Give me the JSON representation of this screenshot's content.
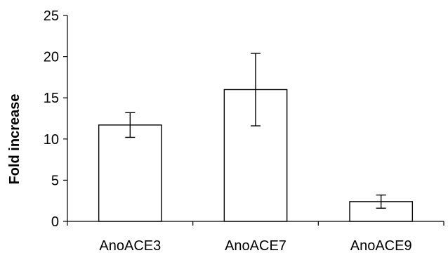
{
  "chart_data": {
    "type": "bar",
    "title": "",
    "xlabel": "",
    "ylabel": "Fold increase",
    "ylim": [
      0,
      25
    ],
    "yticks": [
      0,
      5,
      10,
      15,
      20,
      25
    ],
    "grid": false,
    "categories": [
      "AnoACE3",
      "AnoACE7",
      "AnoACE9"
    ],
    "series": [
      {
        "values": [
          11.7,
          16.0,
          2.4
        ],
        "error": [
          1.5,
          4.4,
          0.8
        ],
        "color": "#ffffff",
        "edge_color": "#000000"
      }
    ]
  }
}
